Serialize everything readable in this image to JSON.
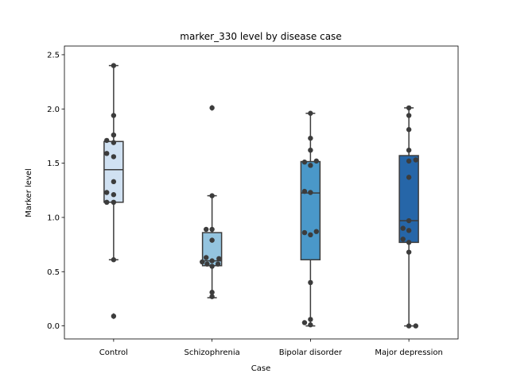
{
  "chart_data": {
    "type": "box",
    "title": "marker_330 level by disease case",
    "xlabel": "Case",
    "ylabel": "Marker level",
    "ylim": [
      -0.12,
      2.58
    ],
    "yticks": [
      "0.0",
      "0.5",
      "1.0",
      "1.5",
      "2.0",
      "2.5"
    ],
    "ytick_values": [
      0.0,
      0.5,
      1.0,
      1.5,
      2.0,
      2.5
    ],
    "grid": false,
    "categories": [
      "Control",
      "Schizophrenia",
      "Bipolar disorder",
      "Major depression"
    ],
    "colors": [
      "#d0e1f2",
      "#94c4df",
      "#4a98c9",
      "#2666a8"
    ],
    "boxes": [
      {
        "q1": 1.14,
        "median": 1.44,
        "q3": 1.7,
        "whisker_low": 0.61,
        "whisker_high": 2.4,
        "outliers": [
          0.09
        ]
      },
      {
        "q1": 0.555,
        "median": 0.6,
        "q3": 0.86,
        "whisker_low": 0.26,
        "whisker_high": 1.2,
        "outliers": [
          2.01
        ]
      },
      {
        "q1": 0.61,
        "median": 1.225,
        "q3": 1.515,
        "whisker_low": 0.0,
        "whisker_high": 1.96,
        "outliers": []
      },
      {
        "q1": 0.77,
        "median": 0.97,
        "q3": 1.57,
        "whisker_low": 0.0,
        "whisker_high": 2.01,
        "outliers": []
      }
    ],
    "points": [
      [
        {
          "dx": 0.0,
          "y": 2.4
        },
        {
          "dx": 0.0,
          "y": 1.94
        },
        {
          "dx": 0.0,
          "y": 1.76
        },
        {
          "dx": -0.07,
          "y": 1.71
        },
        {
          "dx": 0.0,
          "y": 1.69
        },
        {
          "dx": -0.07,
          "y": 1.59
        },
        {
          "dx": 0.0,
          "y": 1.56
        },
        {
          "dx": 0.0,
          "y": 1.33
        },
        {
          "dx": -0.07,
          "y": 1.23
        },
        {
          "dx": 0.0,
          "y": 1.21
        },
        {
          "dx": -0.07,
          "y": 1.14
        },
        {
          "dx": 0.0,
          "y": 1.14
        },
        {
          "dx": 0.0,
          "y": 0.61
        },
        {
          "dx": 0.0,
          "y": 0.09
        }
      ],
      [
        {
          "dx": 0.0,
          "y": 2.01
        },
        {
          "dx": 0.0,
          "y": 1.2
        },
        {
          "dx": -0.06,
          "y": 0.89
        },
        {
          "dx": 0.0,
          "y": 0.89
        },
        {
          "dx": 0.0,
          "y": 0.79
        },
        {
          "dx": -0.06,
          "y": 0.63
        },
        {
          "dx": 0.07,
          "y": 0.62
        },
        {
          "dx": 0.0,
          "y": 0.6
        },
        {
          "dx": -0.1,
          "y": 0.59
        },
        {
          "dx": -0.05,
          "y": 0.57
        },
        {
          "dx": 0.06,
          "y": 0.57
        },
        {
          "dx": 0.0,
          "y": 0.55
        },
        {
          "dx": 0.0,
          "y": 0.31
        },
        {
          "dx": 0.0,
          "y": 0.27
        }
      ],
      [
        {
          "dx": 0.0,
          "y": 1.96
        },
        {
          "dx": 0.0,
          "y": 1.73
        },
        {
          "dx": 0.0,
          "y": 1.62
        },
        {
          "dx": -0.06,
          "y": 1.51
        },
        {
          "dx": 0.0,
          "y": 1.48
        },
        {
          "dx": 0.06,
          "y": 1.52
        },
        {
          "dx": -0.06,
          "y": 1.24
        },
        {
          "dx": 0.0,
          "y": 1.23
        },
        {
          "dx": -0.06,
          "y": 0.86
        },
        {
          "dx": 0.0,
          "y": 0.84
        },
        {
          "dx": 0.06,
          "y": 0.87
        },
        {
          "dx": 0.0,
          "y": 0.4
        },
        {
          "dx": 0.0,
          "y": 0.06
        },
        {
          "dx": -0.06,
          "y": 0.03
        },
        {
          "dx": 0.0,
          "y": 0.01
        }
      ],
      [
        {
          "dx": 0.0,
          "y": 2.01
        },
        {
          "dx": 0.0,
          "y": 1.94
        },
        {
          "dx": 0.0,
          "y": 1.81
        },
        {
          "dx": 0.0,
          "y": 1.62
        },
        {
          "dx": 0.0,
          "y": 1.52
        },
        {
          "dx": 0.07,
          "y": 1.53
        },
        {
          "dx": 0.0,
          "y": 1.37
        },
        {
          "dx": 0.0,
          "y": 0.97
        },
        {
          "dx": -0.06,
          "y": 0.9
        },
        {
          "dx": 0.0,
          "y": 0.88
        },
        {
          "dx": -0.06,
          "y": 0.8
        },
        {
          "dx": 0.0,
          "y": 0.77
        },
        {
          "dx": 0.0,
          "y": 0.68
        },
        {
          "dx": 0.0,
          "y": 0.0
        },
        {
          "dx": 0.07,
          "y": 0.0
        }
      ]
    ]
  }
}
